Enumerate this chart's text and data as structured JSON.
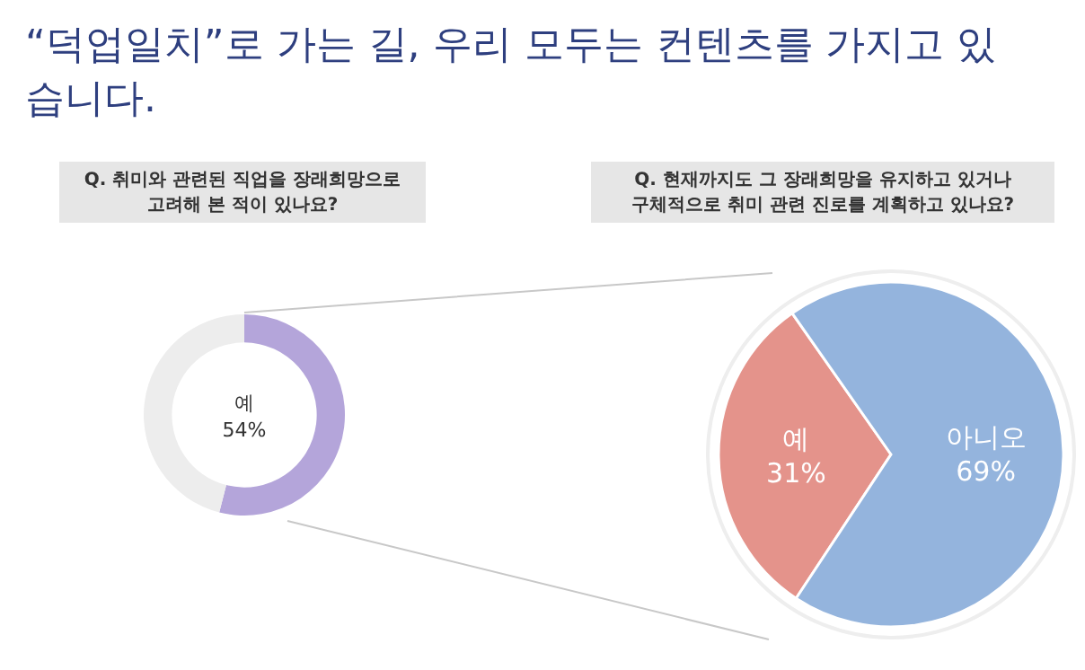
{
  "chart_data": [
    {
      "type": "donut",
      "title": "“덕업일치”로 가는 길, 우리 모두는 컨텐츠를 가지고 있습니다.",
      "subtitle": "Q. 취미와 관련된 직업을 장래희망으로\n고려해 본 적이 있나요?",
      "categories": [
        "예",
        null
      ],
      "values": [
        54,
        46
      ],
      "colors": [
        "#b4a5da",
        "#ededed"
      ],
      "value_labels": [
        "54%",
        null
      ]
    },
    {
      "type": "pie",
      "subtitle": "Q. 현재까지도 그 장래희망을 유지하고 있거나\n구체적으로 취미 관련 진로를 계획하고 있나요?",
      "categories": [
        "예",
        "아니오"
      ],
      "values": [
        31,
        69
      ],
      "colors": [
        "#e4938b",
        "#94b4dd"
      ],
      "value_labels": [
        "31%",
        "69%"
      ]
    }
  ]
}
